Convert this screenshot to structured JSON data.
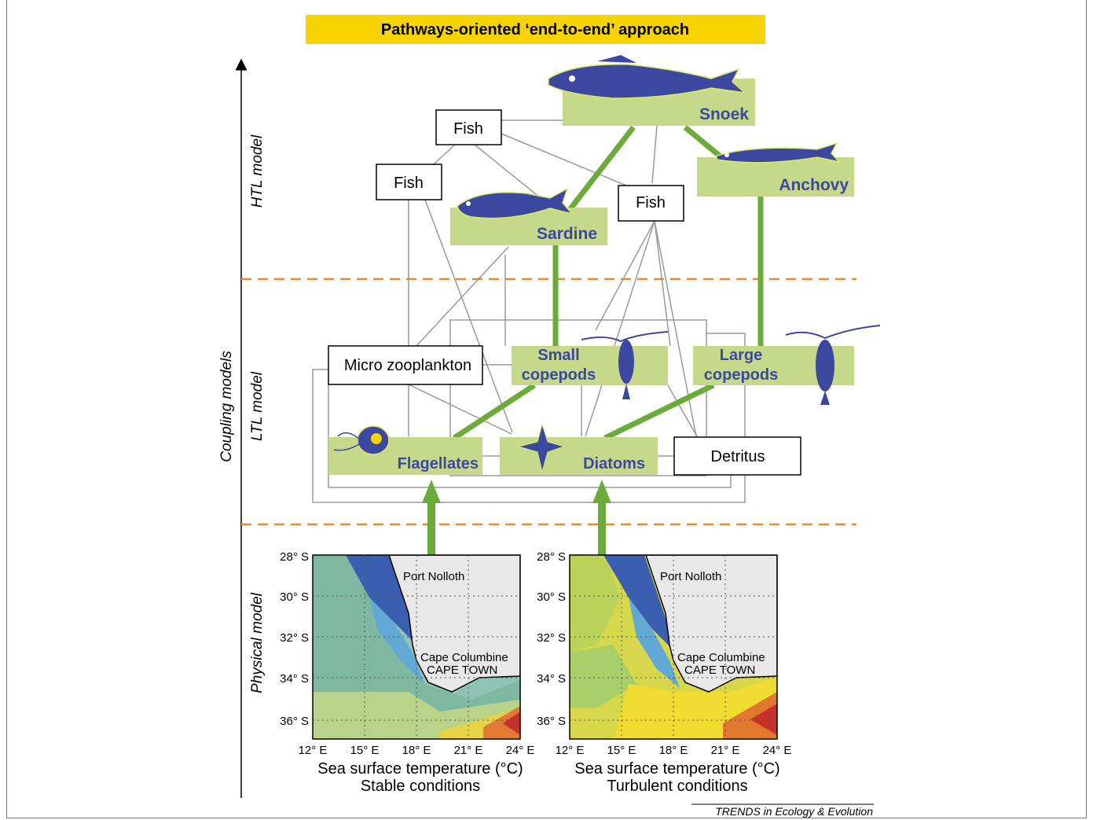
{
  "title": "Pathways-oriented ‘end-to-end’ approach",
  "levels": {
    "htl": "HTL model",
    "coupling": "Coupling models",
    "ltl": "LTL model",
    "physical": "Physical model"
  },
  "nodes": {
    "fish1": "Fish",
    "fish2": "Fish",
    "fish3": "Fish",
    "snoek": "Snoek",
    "anchovy": "Anchovy",
    "sardine": "Sardine",
    "micro": "Micro zooplankton",
    "small_line1": "Small",
    "small_line2": "copepods",
    "large_line1": "Large",
    "large_line2": "copepods",
    "flagellates": "Flagellates",
    "diatoms": "Diatoms",
    "detritus": "Detritus"
  },
  "maps": [
    {
      "lat_ticks": [
        "28° S",
        "30° S",
        "32° S",
        "34° S",
        "36° S"
      ],
      "lon_ticks": [
        "12° E",
        "15° E",
        "18° E",
        "21° E",
        "24° E"
      ],
      "place1": "Port Nolloth",
      "place2": "Cape Columbine",
      "place3": "CAPE TOWN",
      "caption1": "Sea surface temperature (°C)",
      "caption2": "Stable conditions"
    },
    {
      "lat_ticks": [
        "28° S",
        "30° S",
        "32° S",
        "34° S",
        "36° S"
      ],
      "lon_ticks": [
        "12° E",
        "15° E",
        "18° E",
        "21° E",
        "24° E"
      ],
      "place1": "Port Nolloth",
      "place2": "Cape Columbine",
      "place3": "CAPE TOWN",
      "caption1": "Sea surface temperature (°C)",
      "caption2": "Turbulent conditions"
    }
  ],
  "credit": "TRENDS in Ecology & Evolution",
  "colors": {
    "banner": "#f7d400",
    "box_green": "#c6d98a",
    "pathway_green": "#6aab3a",
    "organism_blue": "#3c48a0",
    "divider_orange": "#e58a2e",
    "gray_link": "#9a9a9a"
  }
}
